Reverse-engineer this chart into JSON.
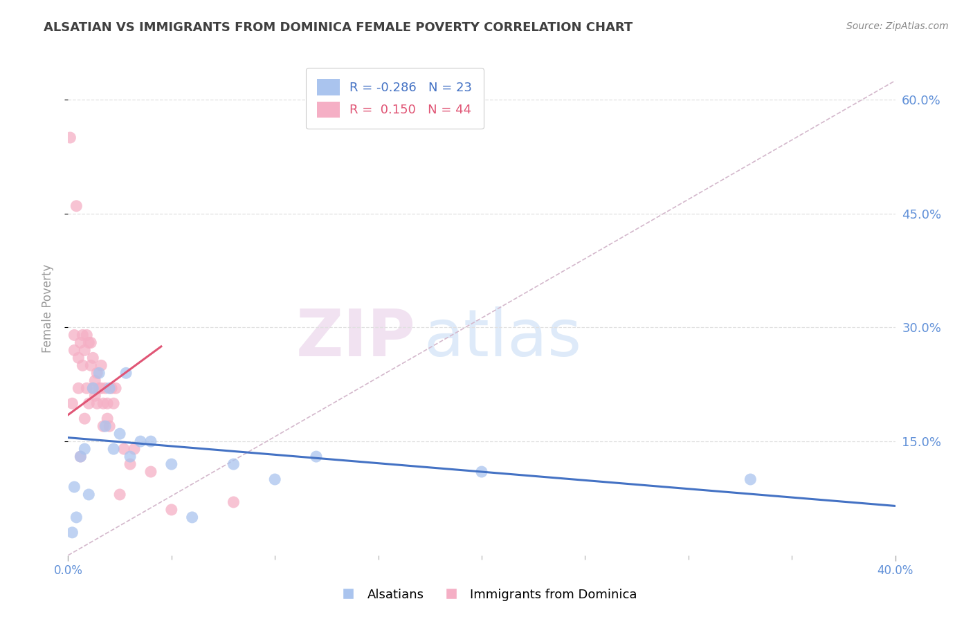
{
  "title": "ALSATIAN VS IMMIGRANTS FROM DOMINICA FEMALE POVERTY CORRELATION CHART",
  "source": "Source: ZipAtlas.com",
  "ylabel": "Female Poverty",
  "watermark_zip": "ZIP",
  "watermark_atlas": "atlas",
  "xmin": 0.0,
  "xmax": 0.4,
  "ymin": 0.0,
  "ymax": 0.65,
  "yticks": [
    0.15,
    0.3,
    0.45,
    0.6
  ],
  "ytick_labels": [
    "15.0%",
    "30.0%",
    "45.0%",
    "60.0%"
  ],
  "xtick_labels_show": [
    "0.0%",
    "40.0%"
  ],
  "xtick_positions_show": [
    0.0,
    0.4
  ],
  "xtick_minor": [
    0.05,
    0.1,
    0.15,
    0.2,
    0.25,
    0.3,
    0.35
  ],
  "blue_label": "Alsatians",
  "pink_label": "Immigrants from Dominica",
  "blue_R": "-0.286",
  "blue_N": "23",
  "pink_R": "0.150",
  "pink_N": "44",
  "blue_color": "#aac4ee",
  "pink_color": "#f5afc5",
  "blue_trend_color": "#4472c4",
  "pink_trend_color": "#e05575",
  "ref_line_color": "#d4b8cc",
  "grid_color": "#e0e0e0",
  "axis_tick_color": "#6090d8",
  "title_color": "#404040",
  "source_color": "#888888",
  "blue_x": [
    0.002,
    0.003,
    0.004,
    0.006,
    0.008,
    0.01,
    0.012,
    0.015,
    0.018,
    0.02,
    0.022,
    0.025,
    0.028,
    0.03,
    0.035,
    0.04,
    0.05,
    0.06,
    0.08,
    0.1,
    0.12,
    0.2,
    0.33
  ],
  "blue_y": [
    0.03,
    0.09,
    0.05,
    0.13,
    0.14,
    0.08,
    0.22,
    0.24,
    0.17,
    0.22,
    0.14,
    0.16,
    0.24,
    0.13,
    0.15,
    0.15,
    0.12,
    0.05,
    0.12,
    0.1,
    0.13,
    0.11,
    0.1
  ],
  "pink_x": [
    0.001,
    0.002,
    0.003,
    0.003,
    0.004,
    0.005,
    0.005,
    0.006,
    0.006,
    0.007,
    0.007,
    0.008,
    0.008,
    0.009,
    0.009,
    0.01,
    0.01,
    0.011,
    0.011,
    0.012,
    0.012,
    0.013,
    0.013,
    0.014,
    0.014,
    0.015,
    0.016,
    0.016,
    0.017,
    0.017,
    0.018,
    0.019,
    0.019,
    0.02,
    0.021,
    0.022,
    0.023,
    0.025,
    0.027,
    0.03,
    0.032,
    0.04,
    0.05,
    0.08
  ],
  "pink_y": [
    0.55,
    0.2,
    0.27,
    0.29,
    0.46,
    0.22,
    0.26,
    0.13,
    0.28,
    0.25,
    0.29,
    0.18,
    0.27,
    0.22,
    0.29,
    0.2,
    0.28,
    0.25,
    0.28,
    0.22,
    0.26,
    0.21,
    0.23,
    0.2,
    0.24,
    0.22,
    0.22,
    0.25,
    0.2,
    0.17,
    0.22,
    0.2,
    0.18,
    0.17,
    0.22,
    0.2,
    0.22,
    0.08,
    0.14,
    0.12,
    0.14,
    0.11,
    0.06,
    0.07
  ],
  "blue_trend_x": [
    0.0,
    0.4
  ],
  "blue_trend_y": [
    0.155,
    0.065
  ],
  "pink_trend_x": [
    0.0,
    0.045
  ],
  "pink_trend_y": [
    0.185,
    0.275
  ],
  "ref_line_x": [
    0.0,
    0.4
  ],
  "ref_line_y": [
    0.0,
    0.625
  ]
}
